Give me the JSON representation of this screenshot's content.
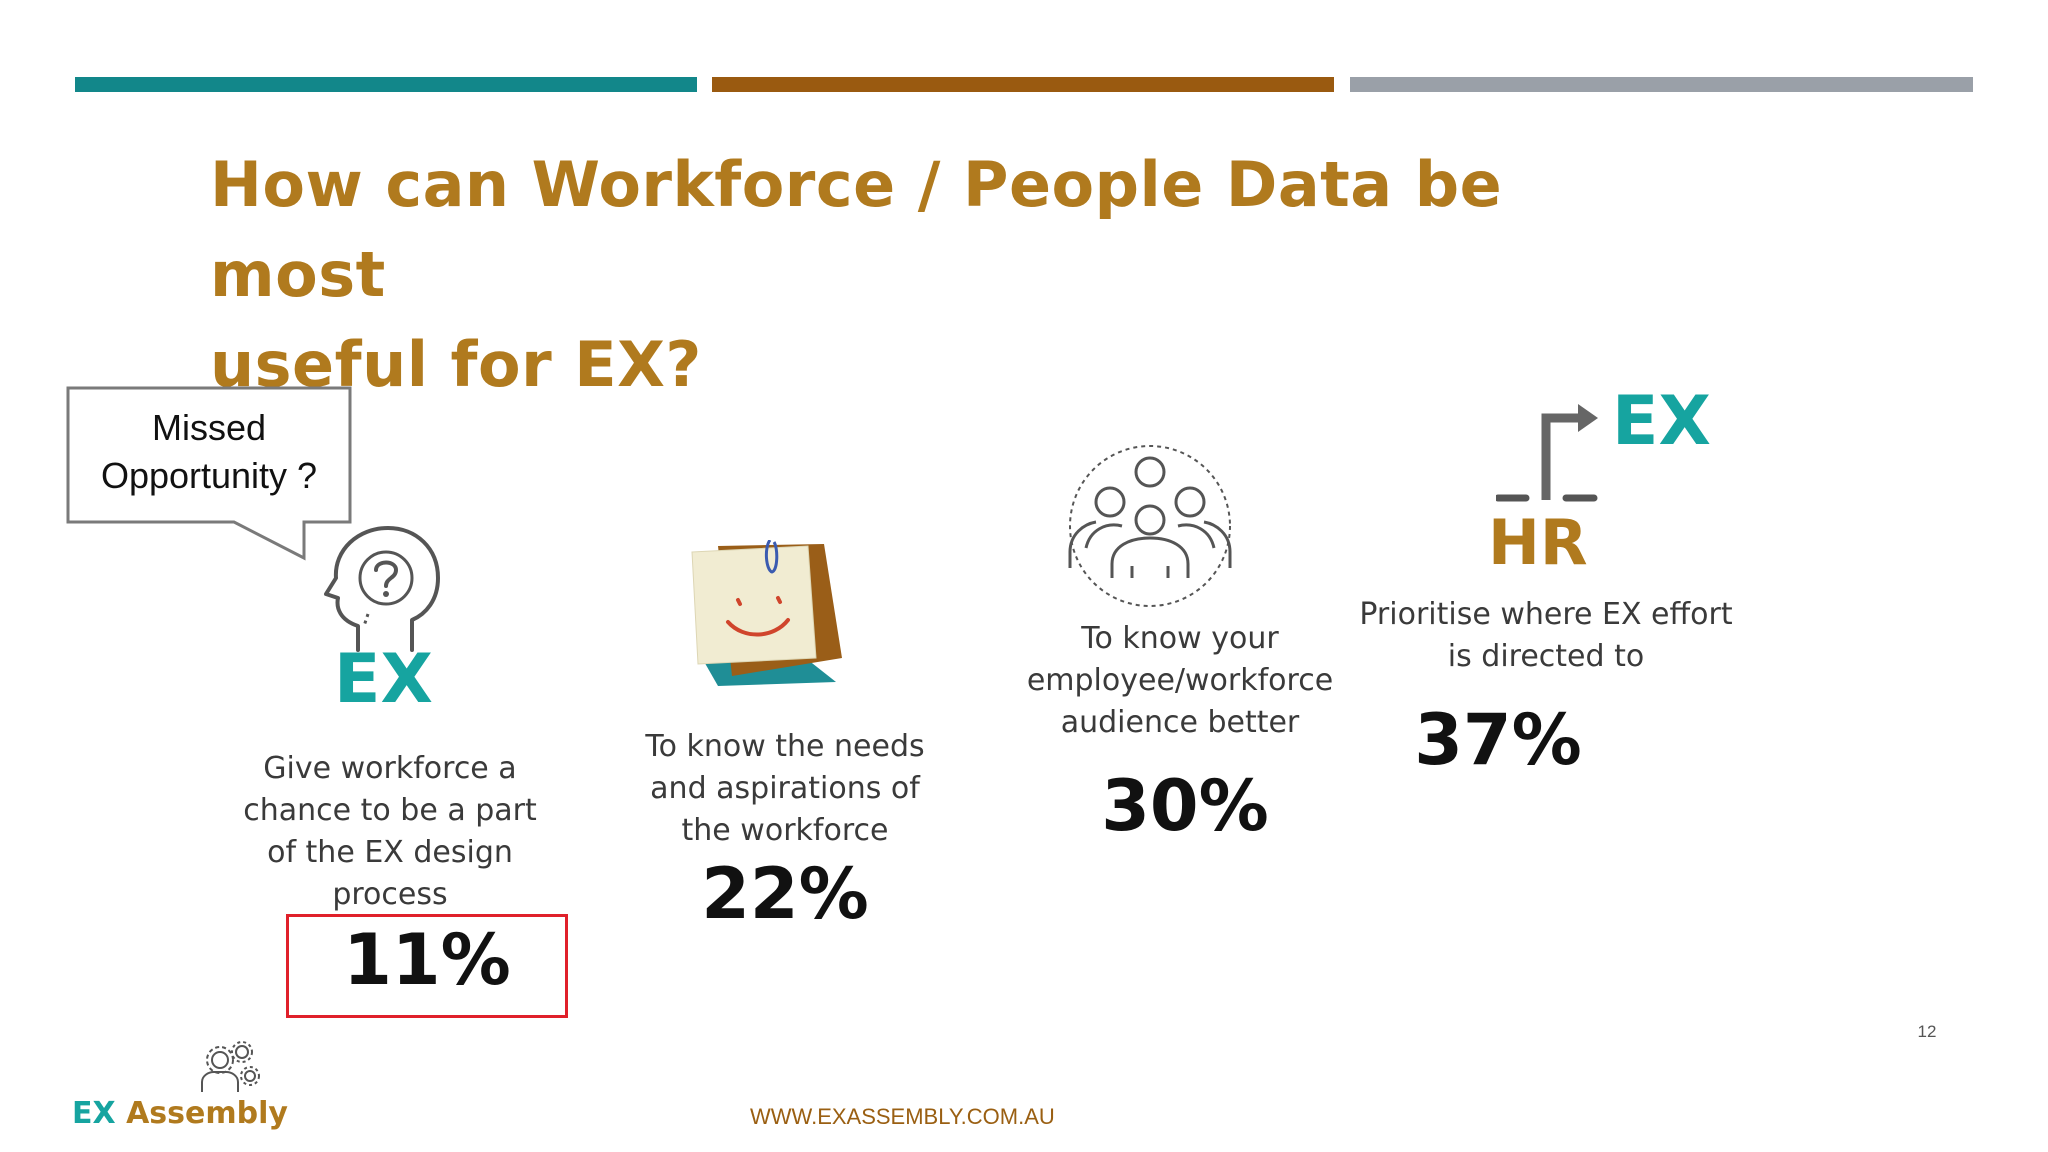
{
  "slide": {
    "top_bars": [
      {
        "color": "#12878a"
      },
      {
        "color": "#9a5a10"
      },
      {
        "color": "#9aa0a8"
      }
    ],
    "title_line1": "How can Workforce / People Data be most",
    "title_line2": "useful for EX?",
    "callout": {
      "line1": "Missed",
      "line2": "Opportunity ?"
    },
    "items": [
      {
        "icon": "question-head-icon",
        "icon_caption": "EX",
        "label": [
          "Give workforce a",
          "chance to be a part",
          "of the EX design",
          "process"
        ],
        "percent": "11%",
        "highlighted": true
      },
      {
        "icon": "sticky-note-smiley-icon",
        "label": [
          "To know the needs",
          "and aspirations of",
          "the workforce"
        ],
        "percent": "22%"
      },
      {
        "icon": "people-group-icon",
        "label": [
          "To know your",
          "employee/workforce",
          "audience better"
        ],
        "percent": "30%"
      },
      {
        "icon": "hr-to-ex-arrow-icon",
        "icon_caption_top": "EX",
        "icon_caption_bottom": "HR",
        "label": [
          "Prioritise where EX effort",
          "is directed to"
        ],
        "percent": "37%"
      }
    ],
    "logo": {
      "icon": "gears-person-icon",
      "part1": "EX",
      "part2": " Assembly",
      "color1": "#16a4a0",
      "color2": "#b07a1e"
    },
    "website": "WWW.EXASSEMBLY.COM.AU",
    "page_number": "12",
    "colors": {
      "title": "#b07a1e",
      "teal": "#16a4a0",
      "highlight": "#e0202a"
    }
  }
}
